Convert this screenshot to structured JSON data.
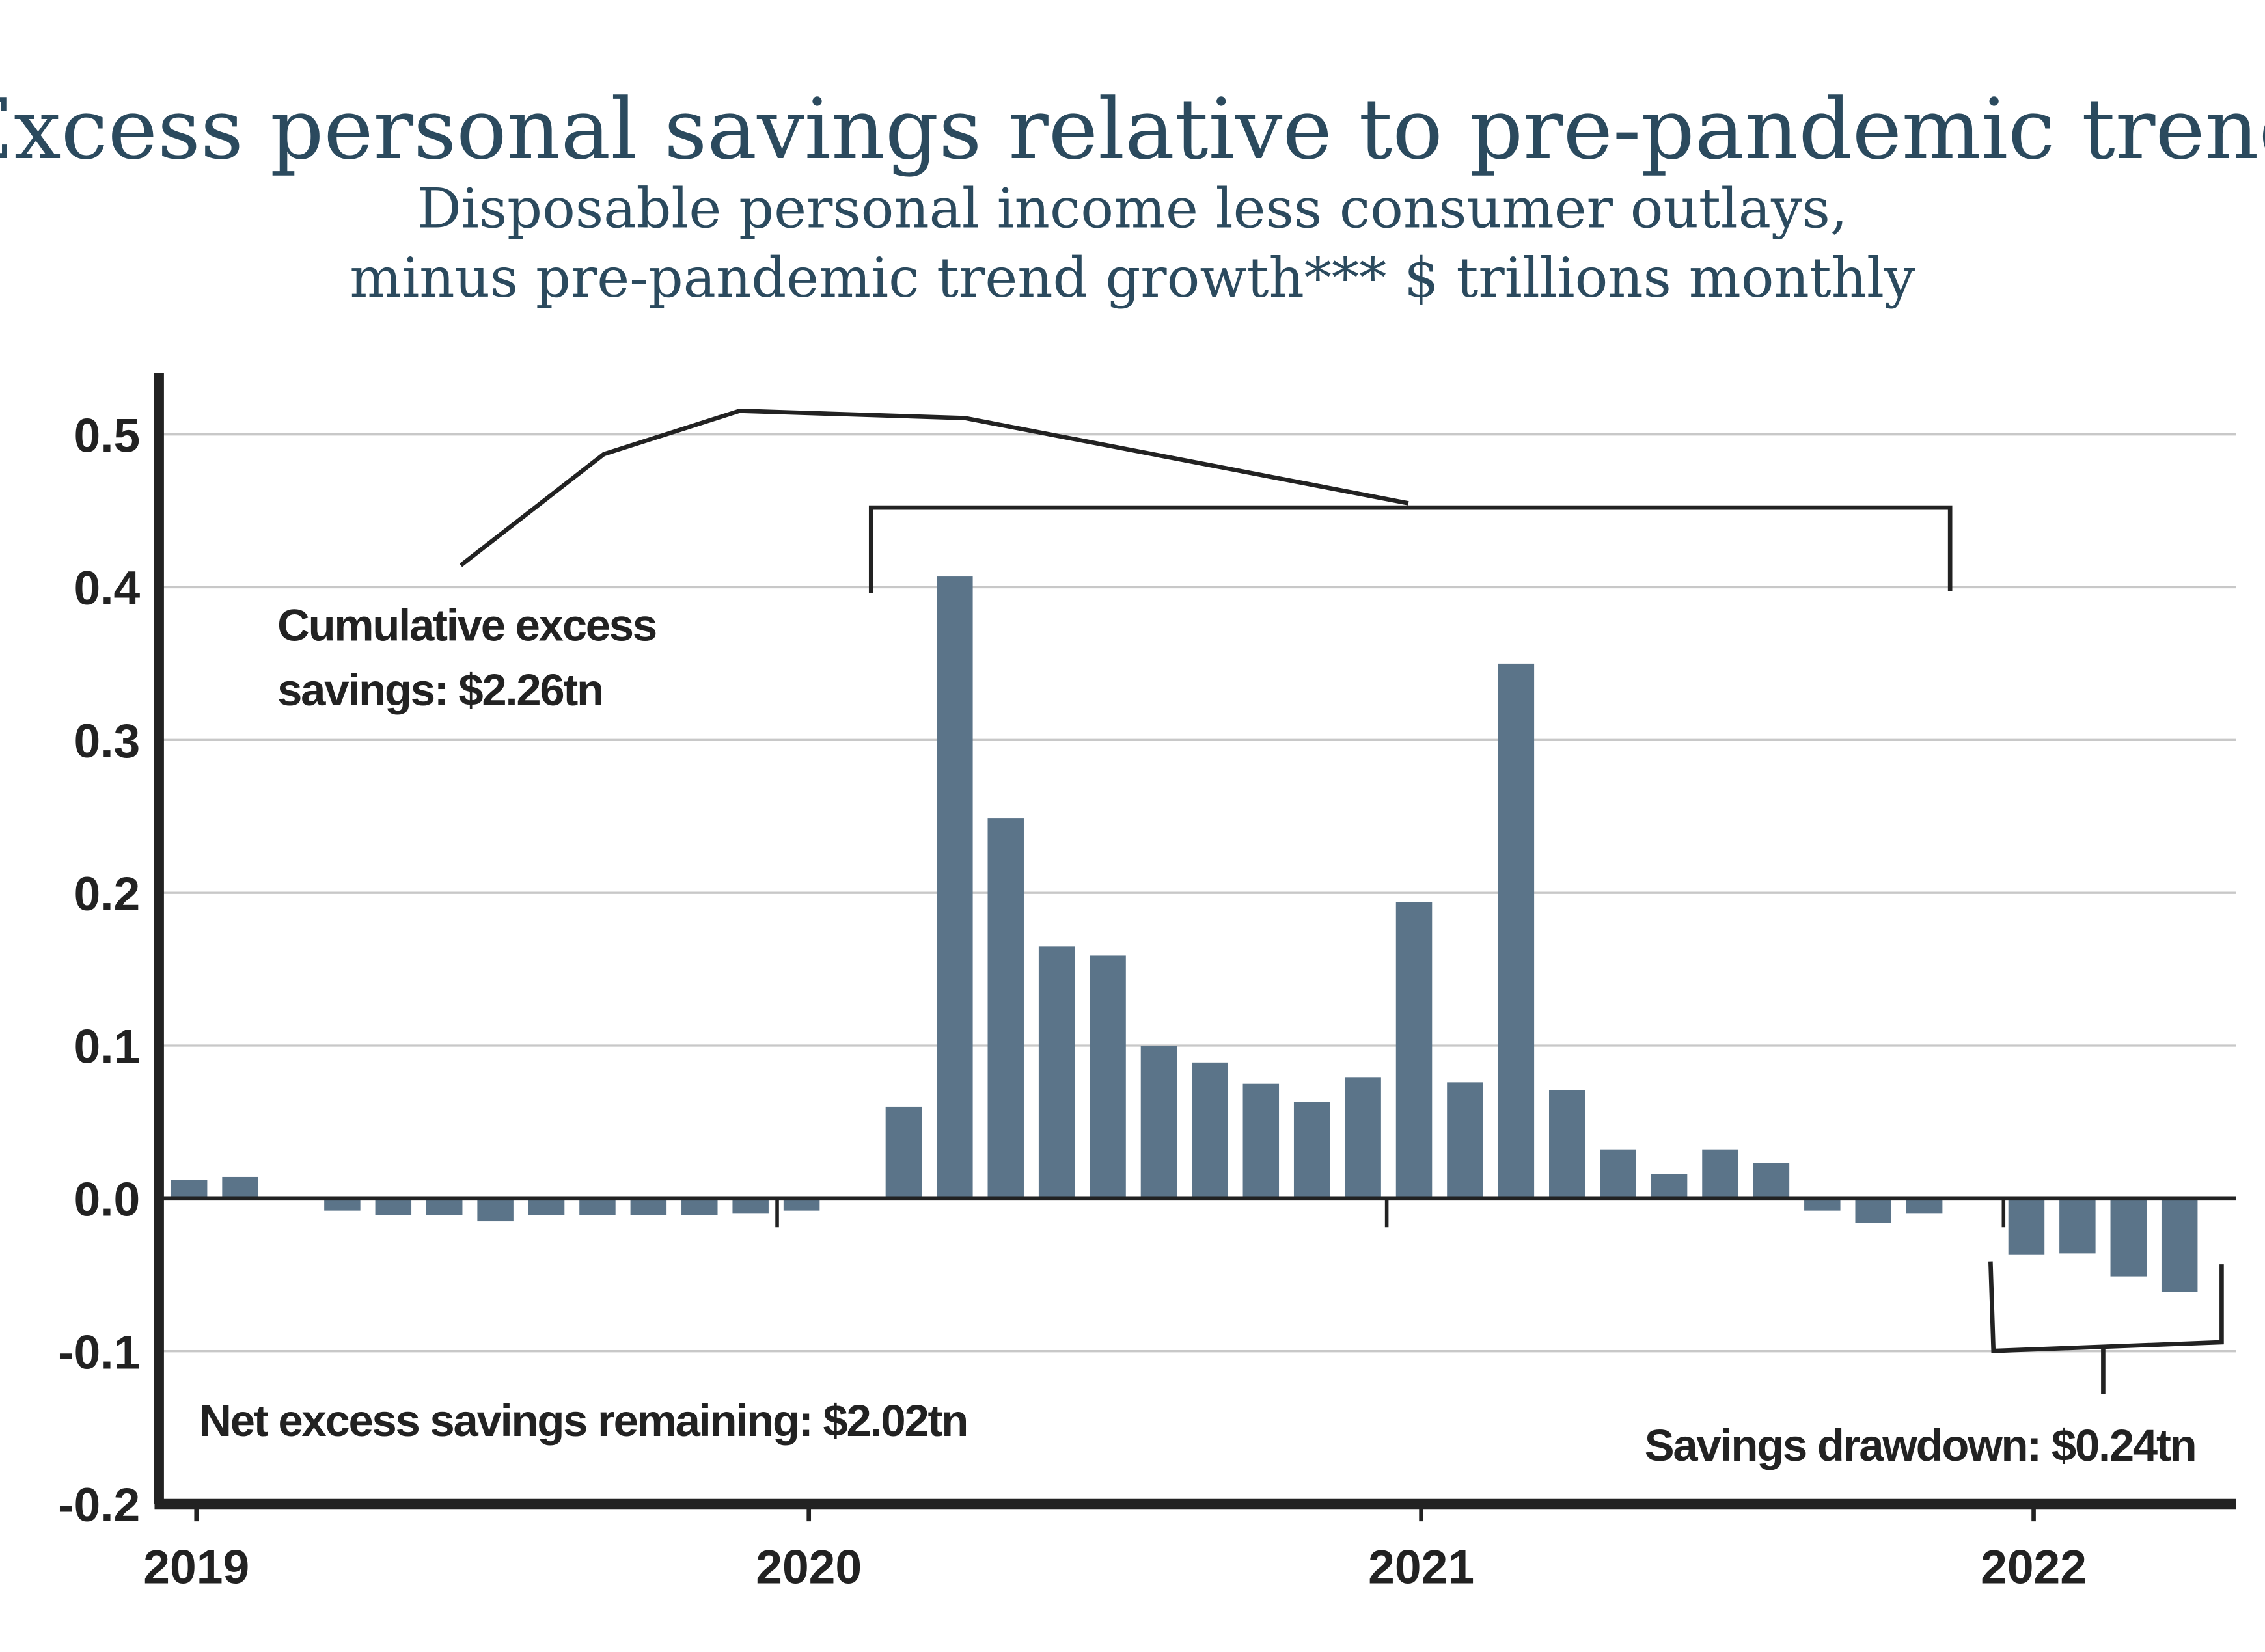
{
  "chart_data": {
    "type": "bar",
    "title": "Excess personal savings relative to pre-pandemic trend",
    "subtitle": [
      "Disposable personal income less consumer outlays,",
      "minus pre-pandemic trend growth*** $ trillions monthly"
    ],
    "categories": [
      "2019",
      null,
      null,
      null,
      null,
      null,
      null,
      null,
      null,
      null,
      null,
      null,
      "2020",
      null,
      null,
      null,
      null,
      null,
      null,
      null,
      null,
      null,
      null,
      null,
      "2021",
      null,
      null,
      null,
      null,
      null,
      null,
      null,
      null,
      null,
      null,
      null,
      "2022",
      null,
      null,
      null
    ],
    "values": [
      0.012,
      0.014,
      0,
      -0.008,
      -0.011,
      -0.011,
      -0.015,
      -0.011,
      -0.011,
      -0.011,
      -0.011,
      -0.01,
      -0.008,
      0,
      0.06,
      0.407,
      0.249,
      0.165,
      0.159,
      0.1,
      0.089,
      0.075,
      0.063,
      0.079,
      0.194,
      0.076,
      0.35,
      0.071,
      0.032,
      0.016,
      0.032,
      0.023,
      -0.008,
      -0.016,
      -0.01,
      0,
      -0.037,
      -0.036,
      -0.051,
      -0.061
    ],
    "color": "#5b7489",
    "ylim": [
      -0.2,
      0.54
    ],
    "yticks": [
      {
        "value": -0.2,
        "label": "-0.2"
      },
      {
        "value": -0.1,
        "label": "-0.1"
      },
      {
        "value": 0,
        "label": "0.0"
      },
      0.1,
      0.2,
      0.3,
      0.4,
      0.5
    ],
    "grid": true,
    "annotations": [
      [
        "Cumulative excess",
        "savings: $2.26tn"
      ],
      [
        "Net excess savings remaining: $2.02tn"
      ],
      [
        "Savings drawdown: $0.24tn"
      ]
    ]
  }
}
